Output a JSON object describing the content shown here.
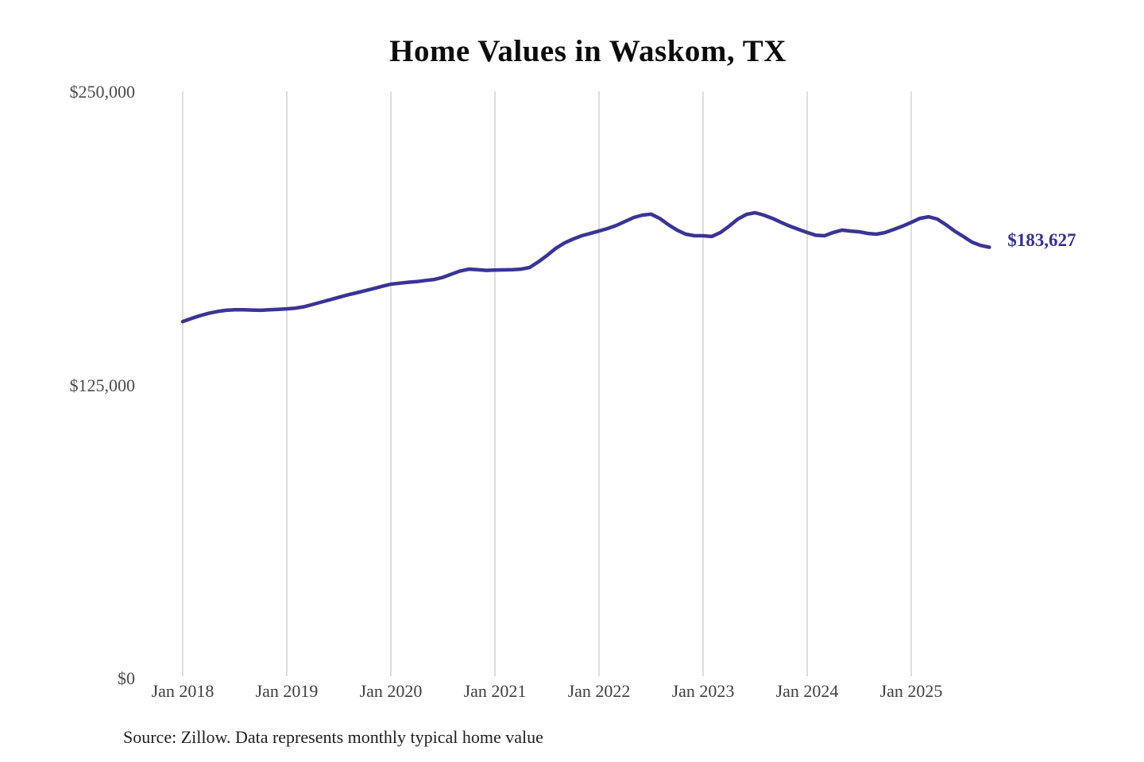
{
  "title": "Home Values in Waskom, TX",
  "source_note": "Source: Zillow. Data represents monthly typical home value",
  "end_label": "$183,627",
  "colors": {
    "line": "#3a3496",
    "end_label_text": "#333090",
    "gridline": "#c9c9c9",
    "axis_text": "#454545",
    "title_text": "#0b0b0b",
    "source_text": "#1e1e1e",
    "background": "#ffffff"
  },
  "y_axis": {
    "tick_labels": [
      "$0",
      "$125,000",
      "$250,000"
    ]
  },
  "x_axis": {
    "tick_labels": [
      "Jan 2018",
      "Jan 2019",
      "Jan 2020",
      "Jan 2021",
      "Jan 2022",
      "Jan 2023",
      "Jan 2024",
      "Jan 2025"
    ]
  },
  "chart_data": {
    "type": "line",
    "title": "Home Values in Waskom, TX",
    "series_name": "Monthly typical home value",
    "xlabel": "",
    "ylabel": "",
    "ylim": [
      0,
      250000
    ],
    "y_ticks": [
      0,
      125000,
      250000
    ],
    "y_tick_labels": [
      "$0",
      "$125,000",
      "$250,000"
    ],
    "x_tick_labels": [
      "Jan 2018",
      "Jan 2019",
      "Jan 2020",
      "Jan 2021",
      "Jan 2022",
      "Jan 2023",
      "Jan 2024",
      "Jan 2025"
    ],
    "grid": "vertical-only",
    "legend": "none",
    "final_value": 183627,
    "final_value_label": "$183,627",
    "x": [
      "2018-01",
      "2018-02",
      "2018-03",
      "2018-04",
      "2018-05",
      "2018-06",
      "2018-07",
      "2018-08",
      "2018-09",
      "2018-10",
      "2018-11",
      "2018-12",
      "2019-01",
      "2019-02",
      "2019-03",
      "2019-04",
      "2019-05",
      "2019-06",
      "2019-07",
      "2019-08",
      "2019-09",
      "2019-10",
      "2019-11",
      "2019-12",
      "2020-01",
      "2020-02",
      "2020-03",
      "2020-04",
      "2020-05",
      "2020-06",
      "2020-07",
      "2020-08",
      "2020-09",
      "2020-10",
      "2020-11",
      "2020-12",
      "2021-01",
      "2021-02",
      "2021-03",
      "2021-04",
      "2021-05",
      "2021-06",
      "2021-07",
      "2021-08",
      "2021-09",
      "2021-10",
      "2021-11",
      "2021-12",
      "2022-01",
      "2022-02",
      "2022-03",
      "2022-04",
      "2022-05",
      "2022-06",
      "2022-07",
      "2022-08",
      "2022-09",
      "2022-10",
      "2022-11",
      "2022-12",
      "2023-01",
      "2023-02",
      "2023-03",
      "2023-04",
      "2023-05",
      "2023-06",
      "2023-07",
      "2023-08",
      "2023-09",
      "2023-10",
      "2023-11",
      "2023-12",
      "2024-01",
      "2024-02",
      "2024-03",
      "2024-04",
      "2024-05",
      "2024-06",
      "2024-07",
      "2024-08",
      "2024-09",
      "2024-10",
      "2024-11",
      "2024-12",
      "2025-01",
      "2025-02",
      "2025-03",
      "2025-04",
      "2025-05",
      "2025-06",
      "2025-07",
      "2025-08",
      "2025-09",
      "2025-10"
    ],
    "values": [
      152000,
      153300,
      154500,
      155500,
      156300,
      156800,
      157000,
      157000,
      156900,
      156800,
      157000,
      157200,
      157400,
      157700,
      158300,
      159300,
      160300,
      161300,
      162300,
      163300,
      164200,
      165100,
      166000,
      167000,
      167900,
      168300,
      168700,
      169000,
      169500,
      169900,
      170800,
      172200,
      173500,
      174300,
      174100,
      173800,
      173900,
      174000,
      174100,
      174300,
      175000,
      177400,
      180100,
      183100,
      185400,
      187100,
      188500,
      189500,
      190500,
      191600,
      192900,
      194600,
      196300,
      197300,
      197700,
      195900,
      193200,
      190900,
      189200,
      188500,
      188500,
      188200,
      189900,
      192600,
      195600,
      197600,
      198300,
      197300,
      195900,
      194200,
      192600,
      191200,
      189900,
      188700,
      188500,
      189900,
      190900,
      190500,
      190200,
      189500,
      189200,
      189900,
      191200,
      192600,
      194200,
      195900,
      196600,
      195600,
      193200,
      190500,
      188200,
      185800,
      184400,
      183627
    ]
  }
}
